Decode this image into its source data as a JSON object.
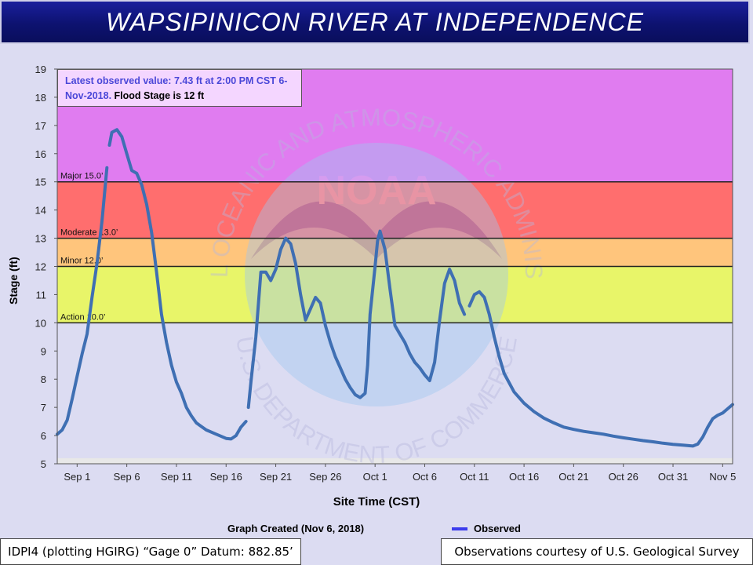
{
  "header": {
    "title": "WAPSIPINICON  RIVER AT INDEPENDENCE"
  },
  "info_box": {
    "observed_text": "Latest observed value: 7.43 ft at 2:00 PM CST 6-Nov-2018.",
    "flood_text": "Flood Stage is 12 ft"
  },
  "footer": {
    "graph_created": "Graph Created (Nov 6, 2018)",
    "datum": "IDPI4 (plotting HGIRG) “Gage 0” Datum: 882.85’",
    "courtesy": "Observations courtesy of U.S. Geological Survey"
  },
  "watermark": {
    "logo_text": "NOAA",
    "ring_top": "NATIONAL OCEANIC AND ATMOSPHERIC ADMINISTRATION",
    "ring_bottom": "U.S. DEPARTMENT OF COMMERCE"
  },
  "chart_data": {
    "type": "line",
    "xlabel": "Site Time (CST)",
    "ylabel": "Stage (ft)",
    "ylim": [
      5,
      19
    ],
    "yticks": [
      "5",
      "6",
      "7",
      "8",
      "9",
      "10",
      "11",
      "12",
      "13",
      "14",
      "15",
      "16",
      "17",
      "18",
      "19"
    ],
    "xlim": [
      "2018-08-30",
      "2018-11-06"
    ],
    "xticks": [
      {
        "date": "2018-09-01",
        "label": "Sep 1"
      },
      {
        "date": "2018-09-06",
        "label": "Sep 6"
      },
      {
        "date": "2018-09-11",
        "label": "Sep 11"
      },
      {
        "date": "2018-09-16",
        "label": "Sep 16"
      },
      {
        "date": "2018-09-21",
        "label": "Sep 21"
      },
      {
        "date": "2018-09-26",
        "label": "Sep 26"
      },
      {
        "date": "2018-10-01",
        "label": "Oct 1"
      },
      {
        "date": "2018-10-06",
        "label": "Oct 6"
      },
      {
        "date": "2018-10-11",
        "label": "Oct 11"
      },
      {
        "date": "2018-10-16",
        "label": "Oct 16"
      },
      {
        "date": "2018-10-21",
        "label": "Oct 21"
      },
      {
        "date": "2018-10-26",
        "label": "Oct 26"
      },
      {
        "date": "2018-10-31",
        "label": "Oct 31"
      },
      {
        "date": "2018-11-05",
        "label": "Nov 5"
      }
    ],
    "flood_categories": [
      {
        "name": "Action",
        "label": "Action 10.0’",
        "from": 10,
        "to": 12,
        "color": "#e8f569"
      },
      {
        "name": "Minor",
        "label": "Minor 12.0’",
        "from": 12,
        "to": 13,
        "color": "#ffc57c"
      },
      {
        "name": "Moderate",
        "label": "Moderate 13.0’",
        "from": 13,
        "to": 15,
        "color": "#ff6e6e"
      },
      {
        "name": "Major",
        "label": "Major 15.0’",
        "from": 15,
        "to": 19,
        "color": "#e07cf0"
      }
    ],
    "below_action_color": "#dcdcf2",
    "series": [
      {
        "name": "Observed",
        "color": "#3f6fb3",
        "segments": [
          [
            [
              "2018-08-30T00:00",
              6.05
            ],
            [
              "2018-08-30T12:00",
              6.2
            ],
            [
              "2018-08-31T00:00",
              6.55
            ],
            [
              "2018-08-31T12:00",
              7.3
            ],
            [
              "2018-09-01T00:00",
              8.1
            ],
            [
              "2018-09-01T12:00",
              8.9
            ],
            [
              "2018-09-02T00:00",
              9.6
            ],
            [
              "2018-09-02T12:00",
              10.9
            ],
            [
              "2018-09-03T00:00",
              12.1
            ],
            [
              "2018-09-03T12:00",
              13.6
            ],
            [
              "2018-09-04T00:00",
              15.5
            ]
          ],
          [
            [
              "2018-09-04T06:00",
              16.3
            ],
            [
              "2018-09-04T12:00",
              16.75
            ],
            [
              "2018-09-05T00:00",
              16.85
            ],
            [
              "2018-09-05T12:00",
              16.6
            ],
            [
              "2018-09-06T00:00",
              16.0
            ],
            [
              "2018-09-06T12:00",
              15.4
            ],
            [
              "2018-09-07T00:00",
              15.3
            ],
            [
              "2018-09-07T12:00",
              14.9
            ],
            [
              "2018-09-08T00:00",
              14.2
            ],
            [
              "2018-09-08T12:00",
              13.2
            ],
            [
              "2018-09-09T00:00",
              11.8
            ],
            [
              "2018-09-09T12:00",
              10.3
            ],
            [
              "2018-09-10T00:00",
              9.3
            ],
            [
              "2018-09-10T12:00",
              8.5
            ],
            [
              "2018-09-11T00:00",
              7.9
            ],
            [
              "2018-09-11T12:00",
              7.5
            ],
            [
              "2018-09-12T00:00",
              7.0
            ],
            [
              "2018-09-12T12:00",
              6.7
            ],
            [
              "2018-09-13T00:00",
              6.45
            ],
            [
              "2018-09-14T00:00",
              6.2
            ],
            [
              "2018-09-15T00:00",
              6.05
            ],
            [
              "2018-09-16T00:00",
              5.9
            ],
            [
              "2018-09-16T12:00",
              5.88
            ],
            [
              "2018-09-17T00:00",
              6.0
            ],
            [
              "2018-09-17T12:00",
              6.3
            ],
            [
              "2018-09-18T00:00",
              6.5
            ]
          ],
          [
            [
              "2018-09-18T06:00",
              7.0
            ],
            [
              "2018-09-18T12:00",
              7.9
            ],
            [
              "2018-09-19T00:00",
              9.5
            ],
            [
              "2018-09-19T12:00",
              11.8
            ],
            [
              "2018-09-20T00:00",
              11.8
            ],
            [
              "2018-09-20T12:00",
              11.5
            ],
            [
              "2018-09-21T00:00",
              11.9
            ],
            [
              "2018-09-21T12:00",
              12.6
            ],
            [
              "2018-09-22T00:00",
              13.0
            ],
            [
              "2018-09-22T12:00",
              12.8
            ],
            [
              "2018-09-23T00:00",
              12.1
            ],
            [
              "2018-09-23T12:00",
              11.0
            ],
            [
              "2018-09-24T00:00",
              10.1
            ],
            [
              "2018-09-24T12:00",
              10.5
            ],
            [
              "2018-09-25T00:00",
              10.9
            ],
            [
              "2018-09-25T12:00",
              10.7
            ],
            [
              "2018-09-26T00:00",
              9.9
            ],
            [
              "2018-09-26T12:00",
              9.3
            ],
            [
              "2018-09-27T00:00",
              8.8
            ],
            [
              "2018-09-27T12:00",
              8.4
            ],
            [
              "2018-09-28T00:00",
              8.0
            ],
            [
              "2018-09-28T12:00",
              7.7
            ],
            [
              "2018-09-29T00:00",
              7.45
            ],
            [
              "2018-09-29T12:00",
              7.35
            ],
            [
              "2018-09-30T00:00",
              7.5
            ],
            [
              "2018-09-30T06:00",
              8.5
            ],
            [
              "2018-09-30T12:00",
              10.3
            ],
            [
              "2018-10-01T00:00",
              12.0
            ],
            [
              "2018-10-01T06:00",
              12.9
            ],
            [
              "2018-10-01T12:00",
              13.25
            ],
            [
              "2018-10-02T00:00",
              12.6
            ],
            [
              "2018-10-02T12:00",
              11.2
            ],
            [
              "2018-10-03T00:00",
              9.9
            ],
            [
              "2018-10-03T12:00",
              9.6
            ],
            [
              "2018-10-04T00:00",
              9.3
            ],
            [
              "2018-10-04T12:00",
              8.9
            ],
            [
              "2018-10-05T00:00",
              8.6
            ],
            [
              "2018-10-05T12:00",
              8.4
            ],
            [
              "2018-10-06T00:00",
              8.15
            ],
            [
              "2018-10-06T12:00",
              7.95
            ],
            [
              "2018-10-07T00:00",
              8.6
            ],
            [
              "2018-10-07T12:00",
              10.1
            ],
            [
              "2018-10-08T00:00",
              11.4
            ],
            [
              "2018-10-08T12:00",
              11.9
            ],
            [
              "2018-10-09T00:00",
              11.5
            ],
            [
              "2018-10-09T12:00",
              10.7
            ],
            [
              "2018-10-10T00:00",
              10.3
            ]
          ],
          [
            [
              "2018-10-10T12:00",
              10.6
            ],
            [
              "2018-10-11T00:00",
              11.0
            ],
            [
              "2018-10-11T12:00",
              11.1
            ],
            [
              "2018-10-12T00:00",
              10.9
            ],
            [
              "2018-10-12T12:00",
              10.3
            ],
            [
              "2018-10-13T00:00",
              9.5
            ],
            [
              "2018-10-13T12:00",
              8.8
            ],
            [
              "2018-10-14T00:00",
              8.2
            ],
            [
              "2018-10-15T00:00",
              7.55
            ],
            [
              "2018-10-16T00:00",
              7.15
            ],
            [
              "2018-10-17T00:00",
              6.85
            ],
            [
              "2018-10-18T00:00",
              6.62
            ],
            [
              "2018-10-19T00:00",
              6.45
            ],
            [
              "2018-10-20T00:00",
              6.3
            ],
            [
              "2018-10-21T00:00",
              6.22
            ],
            [
              "2018-10-22T00:00",
              6.15
            ],
            [
              "2018-10-23T00:00",
              6.1
            ],
            [
              "2018-10-24T00:00",
              6.05
            ],
            [
              "2018-10-25T00:00",
              5.98
            ],
            [
              "2018-10-26T00:00",
              5.92
            ],
            [
              "2018-10-27T00:00",
              5.87
            ],
            [
              "2018-10-28T00:00",
              5.82
            ],
            [
              "2018-10-29T00:00",
              5.78
            ],
            [
              "2018-10-30T00:00",
              5.73
            ],
            [
              "2018-10-31T00:00",
              5.69
            ],
            [
              "2018-11-01T00:00",
              5.66
            ],
            [
              "2018-11-02T00:00",
              5.63
            ],
            [
              "2018-11-02T12:00",
              5.7
            ],
            [
              "2018-11-03T00:00",
              5.95
            ],
            [
              "2018-11-03T12:00",
              6.3
            ],
            [
              "2018-11-04T00:00",
              6.6
            ],
            [
              "2018-11-04T12:00",
              6.72
            ],
            [
              "2018-11-05T00:00",
              6.8
            ],
            [
              "2018-11-05T12:00",
              6.95
            ],
            [
              "2018-11-06T00:00",
              7.1
            ]
          ]
        ]
      }
    ]
  }
}
